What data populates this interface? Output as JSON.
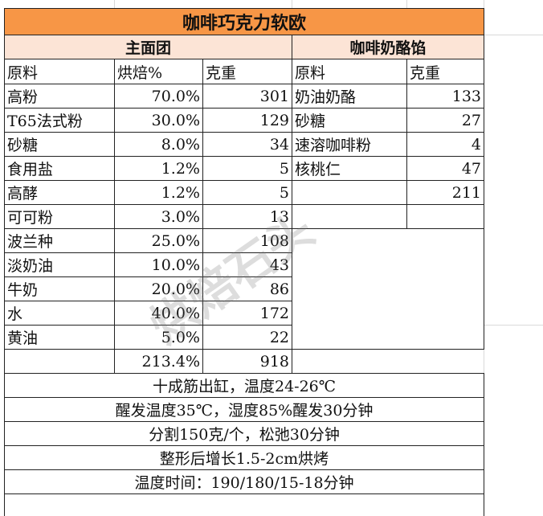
{
  "title": "咖啡巧克力软欧",
  "sections": [
    "主面团",
    "咖啡奶酪馅"
  ],
  "main_dough": {
    "header": [
      "原料",
      "烘焙%",
      "克重"
    ],
    "rows": [
      [
        "高粉",
        "70.0%",
        "301"
      ],
      [
        "T65法式粉",
        "30.0%",
        "129"
      ],
      [
        "砂糖",
        "8.0%",
        "34"
      ],
      [
        "食用盐",
        "1.2%",
        "5"
      ],
      [
        "高酵",
        "1.2%",
        "5"
      ],
      [
        "可可粉",
        "3.0%",
        "13"
      ],
      [
        "波兰种",
        "25.0%",
        "108"
      ],
      [
        "淡奶油",
        "10.0%",
        "43"
      ],
      [
        "牛奶",
        "20.0%",
        "86"
      ],
      [
        "水",
        "40.0%",
        "172"
      ],
      [
        "黄油",
        "5.0%",
        "22"
      ]
    ],
    "total": [
      "213.4%",
      "918"
    ]
  },
  "filling": {
    "header": [
      "原料",
      "克重"
    ],
    "rows": [
      [
        "奶油奶酪",
        "133"
      ],
      [
        "砂糖",
        "27"
      ],
      [
        "速溶咖啡粉",
        "4"
      ],
      [
        "核桃仁",
        "47"
      ]
    ],
    "total": "211"
  },
  "notes": [
    "十成筋出缸，温度24-26℃",
    "醒发温度35℃，湿度85%醒发30分钟",
    "分割150克/个，松弛30分钟",
    "整形后增长1.5-2cm烘烤",
    "温度时间：190/180/15-18分钟"
  ],
  "watermark": "烘焙石头"
}
